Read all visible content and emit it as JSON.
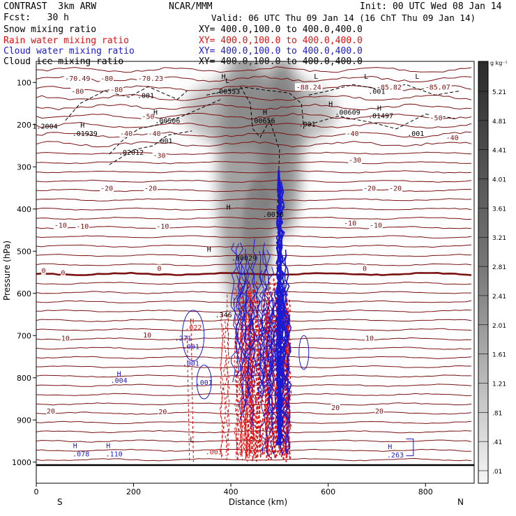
{
  "header": {
    "model": "CONTRAST  3km ARW",
    "forecast": "Fcst:   30 h",
    "center": "NCAR/MMM",
    "init": "Init: 00 UTC Wed 08 Jan 14",
    "valid": "Valid: 06 UTC Thu 09 Jan 14 (16 ChT Thu 09 Jan 14)"
  },
  "fields": [
    {
      "name": "Snow mixing ratio",
      "xy": "XY= 400.0,100.0 to 400.0,400.0",
      "color": "#000000"
    },
    {
      "name": "Rain water mixing ratio",
      "xy": "XY= 400.0,100.0 to 400.0,400.0",
      "color": "#e01010"
    },
    {
      "name": "Cloud water mixing ratio",
      "xy": "XY= 400.0,100.0 to 400.0,400.0",
      "color": "#1a1ad0"
    },
    {
      "name": "Cloud ice mixing ratio",
      "xy": "XY= 400.0,100.0 to 400.0,400.0",
      "color": "#000000"
    }
  ],
  "colors": {
    "temperature": "#7a1010",
    "rain": "#e01010",
    "cloud_water": "#1a1ad0",
    "cloud_ice": "#000000"
  },
  "chart_data": {
    "type": "cross-section",
    "xlabel": "Distance (km)",
    "ylabel": "Pressure (hPa)",
    "x_ticks": [
      "0",
      "200",
      "400",
      "600",
      "800"
    ],
    "y_ticks": [
      "100",
      "200",
      "300",
      "400",
      "500",
      "600",
      "700",
      "800",
      "900",
      "1000"
    ],
    "xlim": [
      0,
      900
    ],
    "ylim": [
      1050,
      50
    ],
    "direction_labels": [
      "S",
      "N"
    ],
    "colorbar": {
      "unit": "g kg⁻¹",
      "labels": [
        "5.21",
        "4.81",
        "4.41",
        "4.01",
        "3.61",
        "3.21",
        "2.81",
        "2.41",
        "2.01",
        "1.61",
        "1.21",
        ".81",
        ".41",
        ".01"
      ]
    },
    "temperature_contours": [
      {
        "value": "-70.49",
        "x": 85,
        "p": 90
      },
      {
        "value": "-80",
        "x": 145,
        "p": 90
      },
      {
        "value": "-70.23",
        "x": 235,
        "p": 90
      },
      {
        "value": "-80",
        "x": 85,
        "p": 120
      },
      {
        "value": "-80",
        "x": 165,
        "p": 116
      },
      {
        "value": "-88.24",
        "x": 560,
        "p": 110
      },
      {
        "value": "-85.82",
        "x": 725,
        "p": 110
      },
      {
        "value": "-85.07",
        "x": 825,
        "p": 110
      },
      {
        "value": "-50",
        "x": 230,
        "p": 180
      },
      {
        "value": "-50",
        "x": 822,
        "p": 183
      },
      {
        "value": "-40",
        "x": 185,
        "p": 220
      },
      {
        "value": "-40",
        "x": 243,
        "p": 220
      },
      {
        "value": "-40",
        "x": 650,
        "p": 220
      },
      {
        "value": "-40",
        "x": 855,
        "p": 230
      },
      {
        "value": "-30",
        "x": 253,
        "p": 272
      },
      {
        "value": "-30",
        "x": 655,
        "p": 283
      },
      {
        "value": "-20",
        "x": 145,
        "p": 350
      },
      {
        "value": "-20",
        "x": 235,
        "p": 350
      },
      {
        "value": "-20",
        "x": 685,
        "p": 350
      },
      {
        "value": "-20",
        "x": 738,
        "p": 350
      },
      {
        "value": "-10",
        "x": 50,
        "p": 438
      },
      {
        "value": "-10",
        "x": 95,
        "p": 440
      },
      {
        "value": "-10",
        "x": 260,
        "p": 440
      },
      {
        "value": "-10",
        "x": 645,
        "p": 433
      },
      {
        "value": "-10",
        "x": 698,
        "p": 438
      },
      {
        "value": "0",
        "x": 15,
        "p": 545
      },
      {
        "value": "0",
        "x": 55,
        "p": 550
      },
      {
        "value": "0",
        "x": 253,
        "p": 540
      },
      {
        "value": "0",
        "x": 675,
        "p": 540
      },
      {
        "value": "10",
        "x": 60,
        "p": 705
      },
      {
        "value": "10",
        "x": 228,
        "p": 698
      },
      {
        "value": "10",
        "x": 685,
        "p": 705
      },
      {
        "value": "20",
        "x": 30,
        "p": 878
      },
      {
        "value": "20",
        "x": 260,
        "p": 880
      },
      {
        "value": "20",
        "x": 615,
        "p": 870
      },
      {
        "value": "20",
        "x": 705,
        "p": 878
      }
    ],
    "snow_labels": [
      {
        "text": ".00553",
        "x": 393,
        "p": 120
      },
      {
        "text": ".001",
        "x": 225,
        "p": 130
      },
      {
        "text": ".001",
        "x": 700,
        "p": 120
      },
      {
        "text": ".00609",
        "x": 640,
        "p": 170
      },
      {
        "text": ".01497",
        "x": 708,
        "p": 178
      },
      {
        "text": ".00506",
        "x": 270,
        "p": 190
      },
      {
        "text": ".00656",
        "x": 465,
        "p": 190
      },
      {
        "text": ".001",
        "x": 557,
        "p": 198
      },
      {
        "text": ".01939",
        "x": 100,
        "p": 220
      },
      {
        "text": ".001",
        "x": 780,
        "p": 220
      },
      {
        "text": ".02012",
        "x": 195,
        "p": 265
      },
      {
        "text": ".001",
        "x": 263,
        "p": 238
      },
      {
        "text": ".0016",
        "x": 487,
        "p": 412
      },
      {
        "text": ".00029",
        "x": 427,
        "p": 515
      },
      {
        "text": "1.2004",
        "x": 18,
        "p": 203
      },
      {
        "text": ".346",
        "x": 385,
        "p": 650
      }
    ],
    "extrema": [
      {
        "text": "H",
        "x": 95,
        "p": 200
      },
      {
        "text": "H",
        "x": 245,
        "p": 170
      },
      {
        "text": "H",
        "x": 470,
        "p": 170
      },
      {
        "text": "H",
        "x": 605,
        "p": 150
      },
      {
        "text": "H",
        "x": 705,
        "p": 160
      },
      {
        "text": "H",
        "x": 385,
        "p": 85
      },
      {
        "text": "H",
        "x": 395,
        "p": 395
      },
      {
        "text": "H",
        "x": 355,
        "p": 495
      },
      {
        "text": "L",
        "x": 678,
        "p": 85
      },
      {
        "text": "L",
        "x": 783,
        "p": 85
      },
      {
        "text": "L",
        "x": 393,
        "p": 95
      },
      {
        "text": "L",
        "x": 575,
        "p": 85
      },
      {
        "text": "L",
        "x": 320,
        "p": 945
      }
    ],
    "rain_labels": [
      {
        "text": ".022",
        "x": 323,
        "p": 680
      },
      {
        "text": ".003",
        "x": 365,
        "p": 975
      },
      {
        "text": "H",
        "x": 320,
        "p": 665
      }
    ],
    "cloud_water_labels": [
      {
        "text": ".001",
        "x": 318,
        "p": 765
      },
      {
        "text": ".001",
        "x": 318,
        "p": 725
      },
      {
        "text": ".271",
        "x": 302,
        "p": 705
      },
      {
        "text": ".001",
        "x": 345,
        "p": 810
      },
      {
        "text": ".004",
        "x": 170,
        "p": 805
      },
      {
        "text": ".078",
        "x": 92,
        "p": 980
      },
      {
        "text": ".110",
        "x": 160,
        "p": 980
      },
      {
        "text": ".263",
        "x": 738,
        "p": 982
      },
      {
        "text": "H",
        "x": 170,
        "p": 790
      },
      {
        "text": "H",
        "x": 80,
        "p": 960
      },
      {
        "text": "H",
        "x": 148,
        "p": 960
      },
      {
        "text": "H",
        "x": 727,
        "p": 962
      }
    ]
  }
}
